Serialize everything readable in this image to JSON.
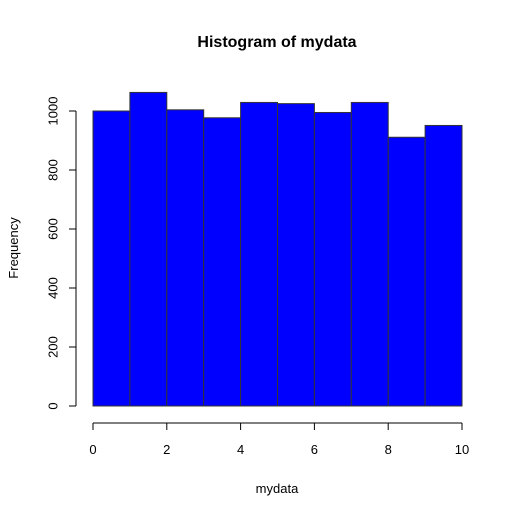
{
  "chart_data": {
    "type": "bar",
    "title": "Histogram of mydata",
    "xlabel": "mydata",
    "ylabel": "Frequency",
    "bin_edges": [
      0,
      1,
      2,
      3,
      4,
      5,
      6,
      7,
      8,
      9,
      10
    ],
    "values": [
      1000,
      1063,
      1004,
      977,
      1029,
      1025,
      995,
      1029,
      911,
      951
    ],
    "xlim": [
      0,
      10
    ],
    "ylim": [
      0,
      1000
    ],
    "x_ticks": [
      "0",
      "2",
      "4",
      "6",
      "8",
      "10"
    ],
    "y_ticks": [
      "0",
      "200",
      "400",
      "600",
      "800",
      "1000"
    ],
    "bar_color": "#0000ff",
    "bar_border_color": "#333333",
    "grid": false,
    "legend": "none"
  }
}
